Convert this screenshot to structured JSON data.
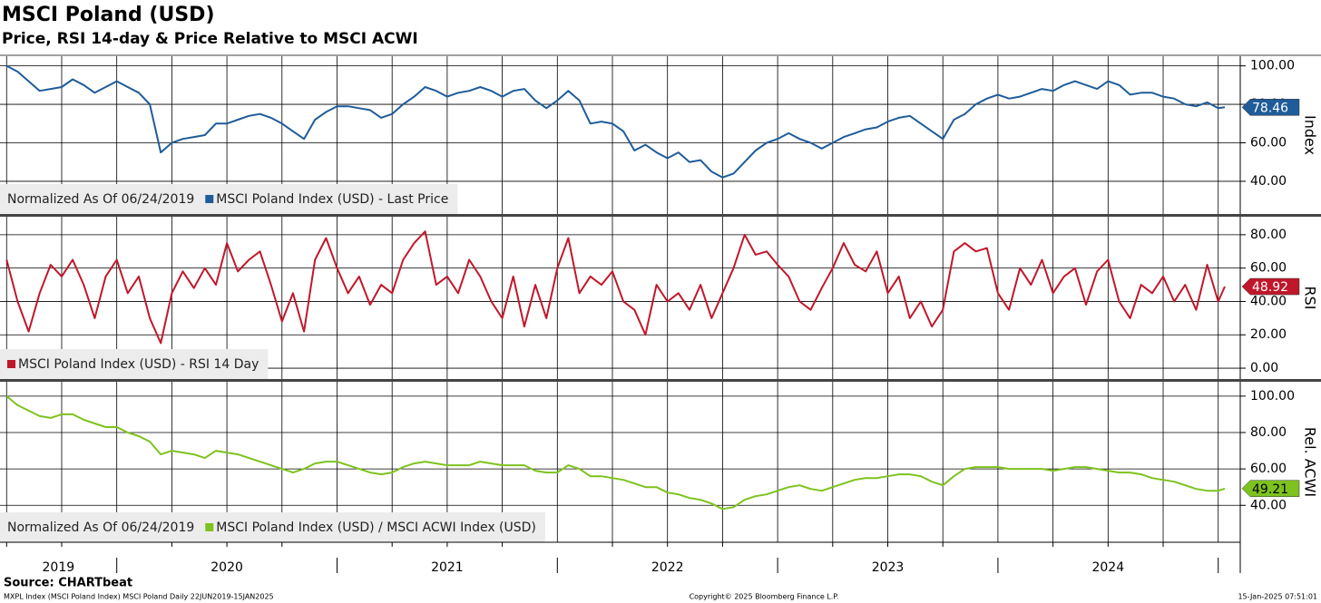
{
  "title": "MSCI Poland (USD)",
  "subtitle": "Price, RSI 14-day & Price Relative to MSCI ACWI",
  "source": "Source: CHARTbeat",
  "footer": {
    "left": "MXPL Index (MSCI Poland Index) MSCI Poland  Daily 22JUN2019-15JAN2025",
    "center": "Copyright© 2025 Bloomberg Finance L.P.",
    "right": "15-Jan-2025 07:51:01"
  },
  "x_axis": {
    "xlim": [
      2019.47,
      2025.1
    ],
    "xticks": [
      2019.5,
      2019.75,
      2020,
      2020.25,
      2020.5,
      2020.75,
      2021,
      2021.25,
      2021.5,
      2021.75,
      2022,
      2022.25,
      2022.5,
      2022.75,
      2023,
      2023.25,
      2023.5,
      2023.75,
      2024,
      2024.25,
      2024.5,
      2024.75,
      2025
    ],
    "year_labels": [
      "2019",
      "2020",
      "2021",
      "2022",
      "2023",
      "2024"
    ]
  },
  "chart_data": [
    {
      "type": "line",
      "ylabel": "Index",
      "note": "Normalized As Of 06/24/2019",
      "ylim": [
        23,
        105
      ],
      "yticks": [
        {
          "value": 40,
          "label": "40.00"
        },
        {
          "value": 60,
          "label": "60.00"
        },
        {
          "value": 80,
          "label": "80.00"
        },
        {
          "value": 100,
          "label": "100.00"
        }
      ],
      "x": [
        2019.5,
        2019.55,
        2019.6,
        2019.65,
        2019.7,
        2019.75,
        2019.8,
        2019.85,
        2019.9,
        2019.95,
        2020,
        2020.05,
        2020.1,
        2020.15,
        2020.2,
        2020.25,
        2020.3,
        2020.35,
        2020.4,
        2020.45,
        2020.5,
        2020.55,
        2020.6,
        2020.65,
        2020.7,
        2020.75,
        2020.8,
        2020.85,
        2020.9,
        2020.95,
        2021,
        2021.05,
        2021.1,
        2021.15,
        2021.2,
        2021.25,
        2021.3,
        2021.35,
        2021.4,
        2021.45,
        2021.5,
        2021.55,
        2021.6,
        2021.65,
        2021.7,
        2021.75,
        2021.8,
        2021.85,
        2021.9,
        2021.95,
        2022,
        2022.05,
        2022.1,
        2022.15,
        2022.2,
        2022.25,
        2022.3,
        2022.35,
        2022.4,
        2022.45,
        2022.5,
        2022.55,
        2022.6,
        2022.65,
        2022.7,
        2022.75,
        2022.8,
        2022.85,
        2022.9,
        2022.95,
        2023,
        2023.05,
        2023.1,
        2023.15,
        2023.2,
        2023.25,
        2023.3,
        2023.35,
        2023.4,
        2023.45,
        2023.5,
        2023.55,
        2023.6,
        2023.65,
        2023.7,
        2023.75,
        2023.8,
        2023.85,
        2023.9,
        2023.95,
        2024,
        2024.05,
        2024.1,
        2024.15,
        2024.2,
        2024.25,
        2024.3,
        2024.35,
        2024.4,
        2024.45,
        2024.5,
        2024.55,
        2024.6,
        2024.65,
        2024.7,
        2024.75,
        2024.8,
        2024.85,
        2024.9,
        2024.95,
        2025,
        2025.03
      ],
      "series": [
        {
          "name": "MSCI Poland Index (USD) - Last Price",
          "color": "#1f5c99",
          "values": [
            100,
            97,
            92,
            87,
            88,
            89,
            93,
            90,
            86,
            89,
            92,
            89,
            86,
            80,
            55,
            60,
            62,
            63,
            64,
            70,
            70,
            72,
            74,
            75,
            73,
            70,
            66,
            62,
            72,
            76,
            79,
            79,
            78,
            77,
            73,
            75,
            80,
            84,
            89,
            87,
            84,
            86,
            87,
            89,
            87,
            84,
            87,
            88,
            82,
            78,
            82,
            87,
            82,
            70,
            71,
            70,
            66,
            56,
            59,
            55,
            52,
            55,
            50,
            51,
            45,
            42,
            44,
            50,
            56,
            60,
            62,
            65,
            62,
            60,
            57,
            60,
            63,
            65,
            67,
            68,
            71,
            73,
            74,
            70,
            66,
            62,
            72,
            75,
            80,
            83,
            85,
            83,
            84,
            86,
            88,
            87,
            90,
            92,
            90,
            88,
            92,
            90,
            85,
            86,
            86,
            84,
            83,
            80,
            79,
            81,
            78,
            78.46
          ]
        }
      ]
    },
    {
      "type": "line",
      "ylabel": "RSI",
      "ylim": [
        -6.5,
        90.8
      ],
      "yticks": [
        {
          "value": 0,
          "label": "0.00"
        },
        {
          "value": 20,
          "label": "20.00"
        },
        {
          "value": 40,
          "label": "40.00"
        },
        {
          "value": 60,
          "label": "60.00"
        },
        {
          "value": 80,
          "label": "80.00"
        }
      ],
      "x": [
        2019.5,
        2019.55,
        2019.6,
        2019.65,
        2019.7,
        2019.75,
        2019.8,
        2019.85,
        2019.9,
        2019.95,
        2020,
        2020.05,
        2020.1,
        2020.15,
        2020.2,
        2020.25,
        2020.3,
        2020.35,
        2020.4,
        2020.45,
        2020.5,
        2020.55,
        2020.6,
        2020.65,
        2020.7,
        2020.75,
        2020.8,
        2020.85,
        2020.9,
        2020.95,
        2021,
        2021.05,
        2021.1,
        2021.15,
        2021.2,
        2021.25,
        2021.3,
        2021.35,
        2021.4,
        2021.45,
        2021.5,
        2021.55,
        2021.6,
        2021.65,
        2021.7,
        2021.75,
        2021.8,
        2021.85,
        2021.9,
        2021.95,
        2022,
        2022.05,
        2022.1,
        2022.15,
        2022.2,
        2022.25,
        2022.3,
        2022.35,
        2022.4,
        2022.45,
        2022.5,
        2022.55,
        2022.6,
        2022.65,
        2022.7,
        2022.75,
        2022.8,
        2022.85,
        2022.9,
        2022.95,
        2023,
        2023.05,
        2023.1,
        2023.15,
        2023.2,
        2023.25,
        2023.3,
        2023.35,
        2023.4,
        2023.45,
        2023.5,
        2023.55,
        2023.6,
        2023.65,
        2023.7,
        2023.75,
        2023.8,
        2023.85,
        2023.9,
        2023.95,
        2024,
        2024.05,
        2024.1,
        2024.15,
        2024.2,
        2024.25,
        2024.3,
        2024.35,
        2024.4,
        2024.45,
        2024.5,
        2024.55,
        2024.6,
        2024.65,
        2024.7,
        2024.75,
        2024.8,
        2024.85,
        2024.9,
        2024.95,
        2025,
        2025.03
      ],
      "series": [
        {
          "name": "MSCI Poland Index (USD) - RSI 14 Day",
          "color": "#c0172b",
          "values": [
            65,
            40,
            22,
            45,
            62,
            55,
            65,
            50,
            30,
            55,
            65,
            45,
            55,
            30,
            15,
            45,
            58,
            48,
            60,
            50,
            75,
            58,
            65,
            70,
            50,
            28,
            45,
            22,
            65,
            78,
            60,
            45,
            55,
            38,
            50,
            45,
            65,
            75,
            82,
            50,
            55,
            45,
            65,
            55,
            40,
            30,
            55,
            25,
            50,
            30,
            60,
            78,
            45,
            55,
            50,
            58,
            40,
            35,
            20,
            50,
            40,
            45,
            35,
            50,
            30,
            45,
            60,
            80,
            68,
            70,
            62,
            55,
            40,
            35,
            48,
            60,
            75,
            62,
            58,
            70,
            45,
            55,
            30,
            40,
            25,
            35,
            70,
            75,
            70,
            72,
            45,
            35,
            60,
            50,
            65,
            45,
            55,
            60,
            38,
            58,
            65,
            40,
            30,
            50,
            45,
            55,
            40,
            50,
            35,
            62,
            40,
            48.92
          ]
        }
      ]
    },
    {
      "type": "line",
      "ylabel": "Rel. ACWI",
      "note": "Normalized As Of 06/24/2019",
      "ylim": [
        19.7,
        107.9
      ],
      "yticks": [
        {
          "value": 40,
          "label": "40.00"
        },
        {
          "value": 60,
          "label": "60.00"
        },
        {
          "value": 80,
          "label": "80.00"
        },
        {
          "value": 100,
          "label": "100.00"
        }
      ],
      "x": [
        2019.5,
        2019.55,
        2019.6,
        2019.65,
        2019.7,
        2019.75,
        2019.8,
        2019.85,
        2019.9,
        2019.95,
        2020,
        2020.05,
        2020.1,
        2020.15,
        2020.2,
        2020.25,
        2020.3,
        2020.35,
        2020.4,
        2020.45,
        2020.5,
        2020.55,
        2020.6,
        2020.65,
        2020.7,
        2020.75,
        2020.8,
        2020.85,
        2020.9,
        2020.95,
        2021,
        2021.05,
        2021.1,
        2021.15,
        2021.2,
        2021.25,
        2021.3,
        2021.35,
        2021.4,
        2021.45,
        2021.5,
        2021.55,
        2021.6,
        2021.65,
        2021.7,
        2021.75,
        2021.8,
        2021.85,
        2021.9,
        2021.95,
        2022,
        2022.05,
        2022.1,
        2022.15,
        2022.2,
        2022.25,
        2022.3,
        2022.35,
        2022.4,
        2022.45,
        2022.5,
        2022.55,
        2022.6,
        2022.65,
        2022.7,
        2022.75,
        2022.8,
        2022.85,
        2022.9,
        2022.95,
        2023,
        2023.05,
        2023.1,
        2023.15,
        2023.2,
        2023.25,
        2023.3,
        2023.35,
        2023.4,
        2023.45,
        2023.5,
        2023.55,
        2023.6,
        2023.65,
        2023.7,
        2023.75,
        2023.8,
        2023.85,
        2023.9,
        2023.95,
        2024,
        2024.05,
        2024.1,
        2024.15,
        2024.2,
        2024.25,
        2024.3,
        2024.35,
        2024.4,
        2024.45,
        2024.5,
        2024.55,
        2024.6,
        2024.65,
        2024.7,
        2024.75,
        2024.8,
        2024.85,
        2024.9,
        2024.95,
        2025,
        2025.03
      ],
      "series": [
        {
          "name": "MSCI Poland Index (USD) / MSCI ACWI Index (USD)",
          "color": "#7dc21e",
          "values": [
            100,
            95,
            92,
            89,
            88,
            90,
            90,
            87,
            85,
            83,
            83,
            80,
            78,
            75,
            68,
            70,
            69,
            68,
            66,
            70,
            69,
            68,
            66,
            64,
            62,
            60,
            58,
            60,
            63,
            64,
            64,
            62,
            60,
            58,
            57,
            58,
            61,
            63,
            64,
            63,
            62,
            62,
            62,
            64,
            63,
            62,
            62,
            62,
            59,
            58,
            58,
            62,
            60,
            56,
            56,
            55,
            54,
            52,
            50,
            50,
            47,
            46,
            44,
            43,
            41,
            38,
            39,
            43,
            45,
            46,
            48,
            50,
            51,
            49,
            48,
            50,
            52,
            54,
            55,
            55,
            56,
            57,
            57,
            56,
            53,
            51,
            56,
            60,
            61,
            61,
            61,
            60,
            60,
            60,
            60,
            59,
            60,
            61,
            61,
            60,
            59,
            58,
            58,
            57,
            55,
            54,
            53,
            51,
            49,
            48,
            48,
            49.21
          ]
        }
      ]
    }
  ]
}
